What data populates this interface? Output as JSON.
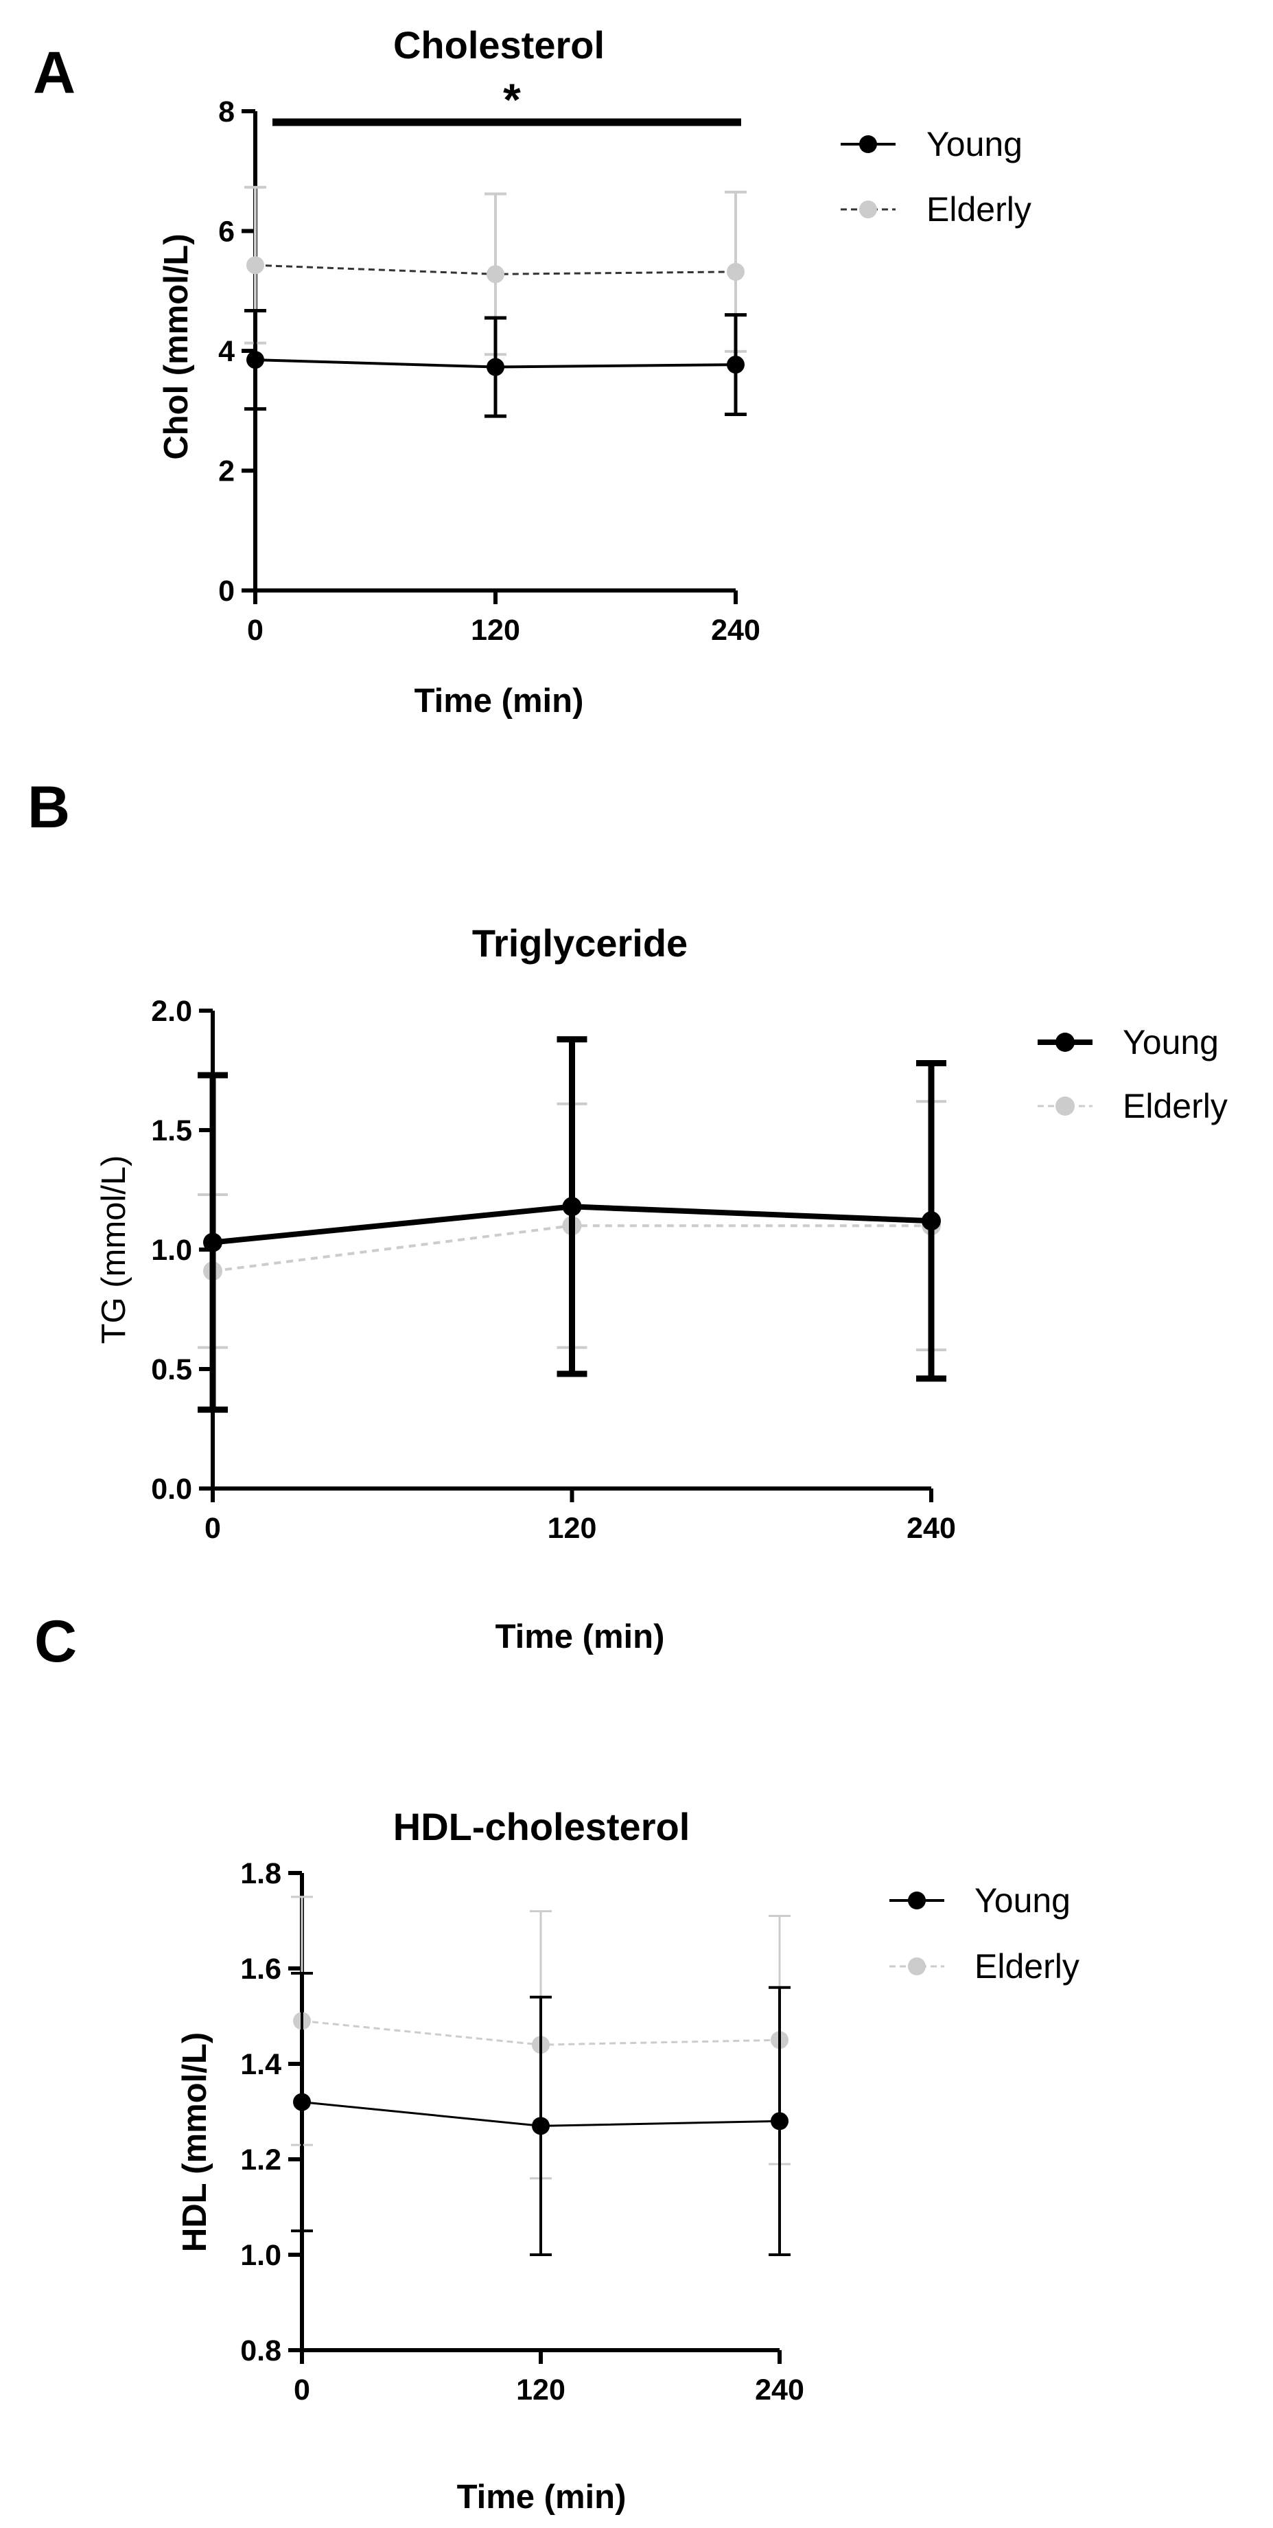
{
  "colors": {
    "young": "#000000",
    "elderly": "#cccccc"
  },
  "chart_data": [
    {
      "panel": "A",
      "type": "line",
      "title": "Cholesterol",
      "xlabel": "Time (min)",
      "ylabel": "Chol (mmol/L)",
      "x": [
        0,
        120,
        240
      ],
      "xticks": [
        "0",
        "120",
        "240"
      ],
      "ylim": [
        0,
        8
      ],
      "yticks": [
        "0",
        "2",
        "4",
        "6",
        "8"
      ],
      "significance": "*",
      "series": [
        {
          "name": "Young",
          "values": [
            3.85,
            3.73,
            3.77
          ],
          "err": [
            0.82,
            0.82,
            0.83
          ]
        },
        {
          "name": "Elderly",
          "values": [
            5.43,
            5.28,
            5.32
          ],
          "err": [
            1.3,
            1.34,
            1.33
          ]
        }
      ]
    },
    {
      "panel": "B",
      "type": "line",
      "title": "Triglyceride",
      "xlabel": "Time (min)",
      "ylabel": "TG (mmol/L)",
      "x": [
        0,
        120,
        240
      ],
      "xticks": [
        "0",
        "120",
        "240"
      ],
      "ylim": [
        0,
        2
      ],
      "yticks": [
        "0.0",
        "0.5",
        "1.0",
        "1.5",
        "2.0"
      ],
      "series": [
        {
          "name": "Young",
          "values": [
            1.03,
            1.18,
            1.12
          ],
          "err": [
            0.7,
            0.7,
            0.66
          ]
        },
        {
          "name": "Elderly",
          "values": [
            0.91,
            1.1,
            1.1
          ],
          "err": [
            0.32,
            0.51,
            0.52
          ]
        }
      ]
    },
    {
      "panel": "C",
      "type": "line",
      "title": "HDL-cholesterol",
      "xlabel": "Time (min)",
      "ylabel": "HDL (mmol/L)",
      "x": [
        0,
        120,
        240
      ],
      "xticks": [
        "0",
        "120",
        "240"
      ],
      "ylim": [
        0.8,
        1.8
      ],
      "yticks": [
        "0.8",
        "1.0",
        "1.2",
        "1.4",
        "1.6",
        "1.8"
      ],
      "series": [
        {
          "name": "Young",
          "values": [
            1.32,
            1.27,
            1.28
          ],
          "err": [
            0.27,
            0.27,
            0.28
          ]
        },
        {
          "name": "Elderly",
          "values": [
            1.49,
            1.44,
            1.45
          ],
          "err": [
            0.26,
            0.28,
            0.26
          ]
        }
      ]
    }
  ]
}
